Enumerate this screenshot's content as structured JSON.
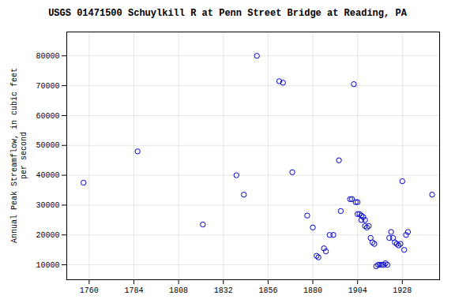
{
  "chart_data": {
    "type": "scatter",
    "title": "USGS 01471500 Schuylkill R at Penn Street Bridge at Reading, PA",
    "ylabel": "Annual Peak Streamflow, in cubic feet\nper second",
    "xlim": [
      1748,
      1948
    ],
    "ylim": [
      5000,
      88000
    ],
    "xticks": [
      1760,
      1784,
      1808,
      1832,
      1856,
      1880,
      1904,
      1928
    ],
    "yticks": [
      10000,
      20000,
      30000,
      40000,
      50000,
      60000,
      70000,
      80000
    ],
    "grid": true,
    "color": "#0000cc",
    "marker": "open circle",
    "x": [
      1757,
      1786,
      1821,
      1839,
      1843,
      1850,
      1862,
      1864,
      1869,
      1877,
      1880,
      1882,
      1883,
      1886,
      1887,
      1889,
      1891,
      1894,
      1895,
      1900,
      1901,
      1902,
      1903,
      1904,
      1904,
      1905,
      1906,
      1906,
      1907,
      1908,
      1908,
      1909,
      1910,
      1911,
      1912,
      1913,
      1914,
      1915,
      1916,
      1917,
      1918,
      1919,
      1920,
      1921,
      1922,
      1923,
      1924,
      1925,
      1926,
      1927,
      1928,
      1929,
      1930,
      1931,
      1944
    ],
    "values": [
      37500,
      48000,
      23500,
      40000,
      33500,
      80000,
      71500,
      71000,
      41000,
      26500,
      22500,
      13000,
      12500,
      15500,
      14500,
      20000,
      20000,
      45000,
      28000,
      32000,
      32000,
      70500,
      31000,
      31000,
      27000,
      27000,
      26500,
      25000,
      26000,
      25000,
      23000,
      22500,
      23000,
      19000,
      17500,
      17000,
      9500,
      10000,
      10000,
      10000,
      10000,
      10500,
      10000,
      19000,
      21000,
      19000,
      17500,
      17000,
      16500,
      17000,
      38000,
      15000,
      20000,
      21000,
      33500
    ]
  }
}
